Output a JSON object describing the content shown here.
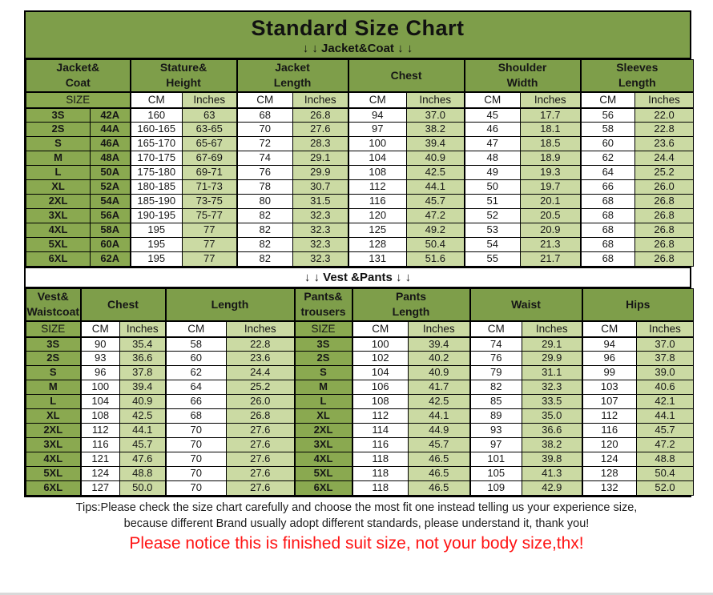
{
  "colors": {
    "header-green": "#7e9e4a",
    "size-green": "#8aa950",
    "light-green": "#cbdaa3",
    "notice-red": "#ff1414",
    "border-black": "#000000"
  },
  "header": {
    "title": "Standard Size Chart"
  },
  "chart_data": [
    {
      "type": "table",
      "name": "jacket-coat",
      "section_label": "↓ ↓  Jacket&Coat ↓ ↓",
      "groups": [
        {
          "label": "Jacket&\nCoat"
        },
        {
          "label": "Stature&\nHeight"
        },
        {
          "label": "Jacket\nLength"
        },
        {
          "label": "Chest"
        },
        {
          "label": "Shoulder\nWidth"
        },
        {
          "label": "Sleeves\nLength"
        }
      ],
      "subheader": [
        "SIZE",
        "CM",
        "Inches",
        "CM",
        "Inches",
        "CM",
        "Inches",
        "CM",
        "Inches",
        "CM",
        "Inches"
      ],
      "rows": [
        [
          "3S",
          "42A",
          "160",
          "63",
          "68",
          "26.8",
          "94",
          "37.0",
          "45",
          "17.7",
          "56",
          "22.0"
        ],
        [
          "2S",
          "44A",
          "160-165",
          "63-65",
          "70",
          "27.6",
          "97",
          "38.2",
          "46",
          "18.1",
          "58",
          "22.8"
        ],
        [
          "S",
          "46A",
          "165-170",
          "65-67",
          "72",
          "28.3",
          "100",
          "39.4",
          "47",
          "18.5",
          "60",
          "23.6"
        ],
        [
          "M",
          "48A",
          "170-175",
          "67-69",
          "74",
          "29.1",
          "104",
          "40.9",
          "48",
          "18.9",
          "62",
          "24.4"
        ],
        [
          "L",
          "50A",
          "175-180",
          "69-71",
          "76",
          "29.9",
          "108",
          "42.5",
          "49",
          "19.3",
          "64",
          "25.2"
        ],
        [
          "XL",
          "52A",
          "180-185",
          "71-73",
          "78",
          "30.7",
          "112",
          "44.1",
          "50",
          "19.7",
          "66",
          "26.0"
        ],
        [
          "2XL",
          "54A",
          "185-190",
          "73-75",
          "80",
          "31.5",
          "116",
          "45.7",
          "51",
          "20.1",
          "68",
          "26.8"
        ],
        [
          "3XL",
          "56A",
          "190-195",
          "75-77",
          "82",
          "32.3",
          "120",
          "47.2",
          "52",
          "20.5",
          "68",
          "26.8"
        ],
        [
          "4XL",
          "58A",
          "195",
          "77",
          "82",
          "32.3",
          "125",
          "49.2",
          "53",
          "20.9",
          "68",
          "26.8"
        ],
        [
          "5XL",
          "60A",
          "195",
          "77",
          "82",
          "32.3",
          "128",
          "50.4",
          "54",
          "21.3",
          "68",
          "26.8"
        ],
        [
          "6XL",
          "62A",
          "195",
          "77",
          "82",
          "32.3",
          "131",
          "51.6",
          "55",
          "21.7",
          "68",
          "26.8"
        ]
      ]
    },
    {
      "type": "table",
      "name": "vest-pants",
      "section_label": "↓ ↓  Vest &Pants ↓ ↓",
      "groups": [
        {
          "label": "Vest&\nWaistcoat"
        },
        {
          "label": "Chest"
        },
        {
          "label": "Length"
        },
        {
          "label": "Pants&\ntrousers"
        },
        {
          "label": "Pants\nLength"
        },
        {
          "label": "Waist"
        },
        {
          "label": "Hips"
        }
      ],
      "subheader": [
        "SIZE",
        "CM",
        "Inches",
        "CM",
        "Inches",
        "SIZE",
        "CM",
        "Inches",
        "CM",
        "Inches",
        "CM",
        "Inches"
      ],
      "rows": [
        [
          "3S",
          "90",
          "35.4",
          "58",
          "22.8",
          "3S",
          "100",
          "39.4",
          "74",
          "29.1",
          "94",
          "37.0"
        ],
        [
          "2S",
          "93",
          "36.6",
          "60",
          "23.6",
          "2S",
          "102",
          "40.2",
          "76",
          "29.9",
          "96",
          "37.8"
        ],
        [
          "S",
          "96",
          "37.8",
          "62",
          "24.4",
          "S",
          "104",
          "40.9",
          "79",
          "31.1",
          "99",
          "39.0"
        ],
        [
          "M",
          "100",
          "39.4",
          "64",
          "25.2",
          "M",
          "106",
          "41.7",
          "82",
          "32.3",
          "103",
          "40.6"
        ],
        [
          "L",
          "104",
          "40.9",
          "66",
          "26.0",
          "L",
          "108",
          "42.5",
          "85",
          "33.5",
          "107",
          "42.1"
        ],
        [
          "XL",
          "108",
          "42.5",
          "68",
          "26.8",
          "XL",
          "112",
          "44.1",
          "89",
          "35.0",
          "112",
          "44.1"
        ],
        [
          "2XL",
          "112",
          "44.1",
          "70",
          "27.6",
          "2XL",
          "114",
          "44.9",
          "93",
          "36.6",
          "116",
          "45.7"
        ],
        [
          "3XL",
          "116",
          "45.7",
          "70",
          "27.6",
          "3XL",
          "116",
          "45.7",
          "97",
          "38.2",
          "120",
          "47.2"
        ],
        [
          "4XL",
          "121",
          "47.6",
          "70",
          "27.6",
          "4XL",
          "118",
          "46.5",
          "101",
          "39.8",
          "124",
          "48.8"
        ],
        [
          "5XL",
          "124",
          "48.8",
          "70",
          "27.6",
          "5XL",
          "118",
          "46.5",
          "105",
          "41.3",
          "128",
          "50.4"
        ],
        [
          "6XL",
          "127",
          "50.0",
          "70",
          "27.6",
          "6XL",
          "118",
          "46.5",
          "109",
          "42.9",
          "132",
          "52.0"
        ]
      ]
    }
  ],
  "footer": {
    "tips_line1": "Tips:Please check the size chart carefully and choose the most fit one instead telling us your experience size,",
    "tips_line2": "because different Brand usually adopt different standards, please understand it, thank you!",
    "notice": "Please notice this is finished suit size, not your body size,thx!"
  }
}
